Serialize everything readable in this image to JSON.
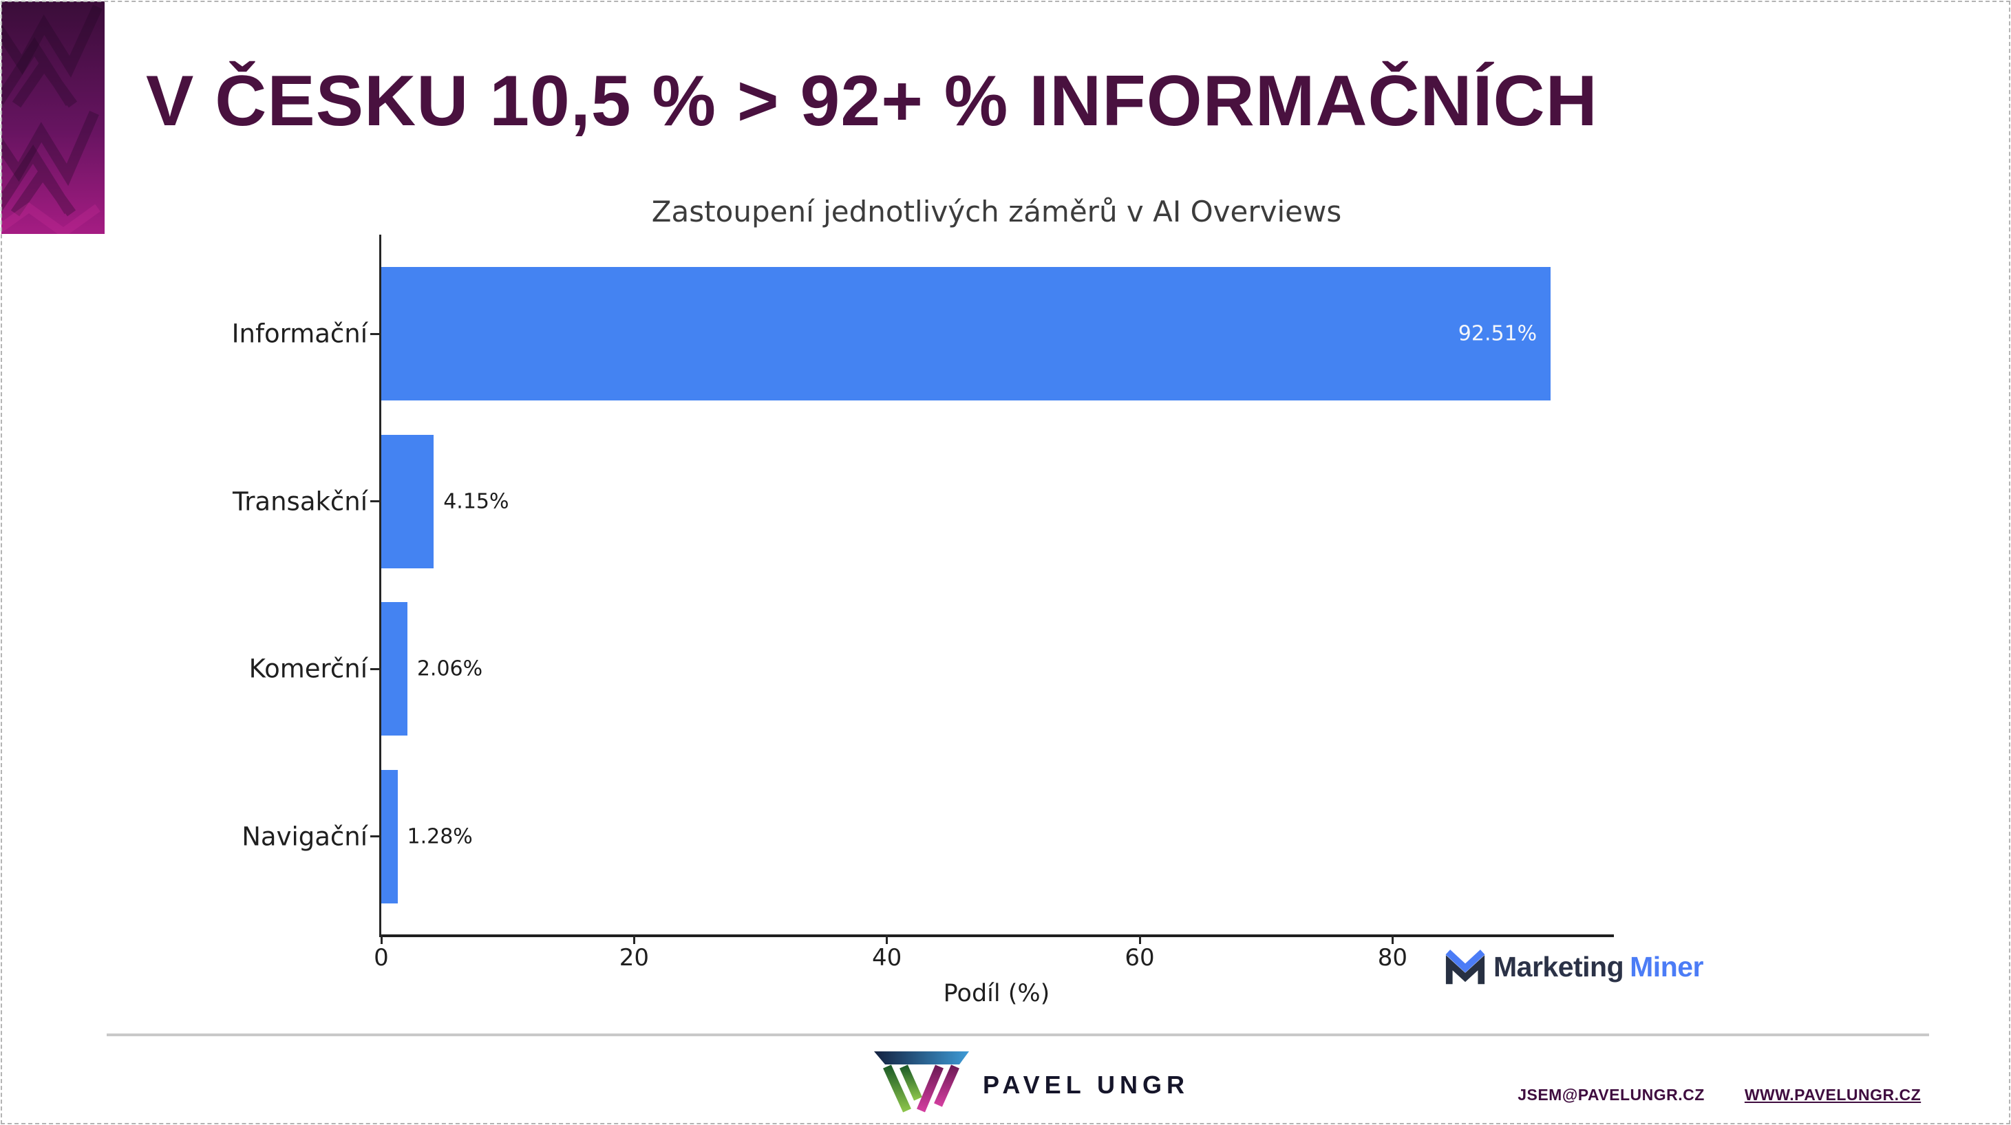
{
  "slide": {
    "title": "V ČESKU 10,5 % > 92+ % INFORMAČNÍCH"
  },
  "chart_data": {
    "type": "bar",
    "orientation": "horizontal",
    "title": "Zastoupení jednotlivých záměrů v AI Overviews",
    "xlabel": "Podíl (%)",
    "categories": [
      "Informační",
      "Transakční",
      "Komerční",
      "Navigační"
    ],
    "values": [
      92.51,
      4.15,
      2.06,
      1.28
    ],
    "value_labels": [
      "92.51%",
      "4.15%",
      "2.06%",
      "1.28%"
    ],
    "xticks": [
      0,
      20,
      40,
      60,
      80
    ],
    "xlim": [
      0,
      97.4
    ],
    "grid": false,
    "bar_color": "#4483F2"
  },
  "logos": {
    "marketing_miner": {
      "text_dark": "Marketing",
      "text_blue": "Miner"
    },
    "pavel_ungr": {
      "text": "PAVEL UNGR"
    }
  },
  "footer": {
    "email": "JSEM@PAVELUNGR.CZ",
    "website": "WWW.PAVELUNGR.CZ"
  },
  "colors": {
    "accent_purple": "#49113F",
    "bar_blue": "#4483F2",
    "link_purple": "#3F0D3F",
    "sidebar_top": "#3A0D39",
    "sidebar_bottom": "#A51C83"
  }
}
